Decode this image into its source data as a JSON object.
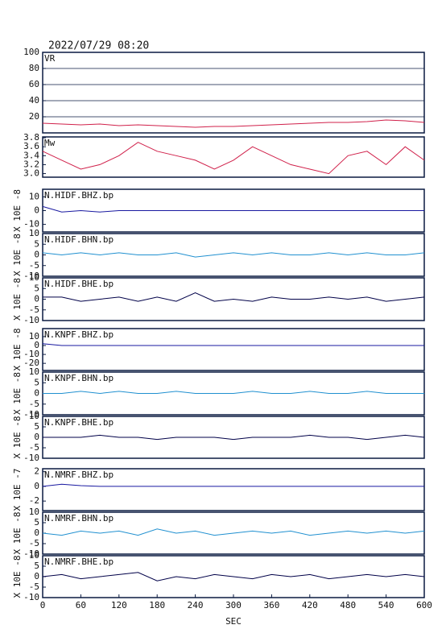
{
  "chart_data": [
    {
      "type": "line",
      "title": "2022/07/29 08:20",
      "label": "VR",
      "xlim": [
        0,
        600
      ],
      "ylim": [
        0,
        100
      ],
      "yticks": [
        20,
        40,
        60,
        80,
        100
      ],
      "grid": true,
      "color": "#d0204a",
      "x": [
        0,
        30,
        60,
        90,
        120,
        150,
        180,
        210,
        240,
        270,
        300,
        330,
        360,
        390,
        420,
        450,
        480,
        510,
        540,
        570,
        600
      ],
      "values": [
        12,
        11,
        10,
        11,
        9,
        10,
        9,
        8,
        7,
        8,
        8,
        9,
        10,
        11,
        12,
        13,
        13,
        14,
        16,
        15,
        13
      ]
    },
    {
      "type": "line",
      "label": "Mw",
      "xlim": [
        0,
        600
      ],
      "ylim": [
        2.92,
        3.82
      ],
      "yticks": [
        {
          "value": 3,
          "label": "3.0"
        },
        3.2,
        3.4,
        3.6,
        3.8
      ],
      "color": "#d0204a",
      "x": [
        0,
        30,
        60,
        90,
        120,
        150,
        180,
        210,
        240,
        270,
        300,
        330,
        360,
        390,
        420,
        450,
        480,
        510,
        540,
        570,
        600
      ],
      "values": [
        3.5,
        3.3,
        3.1,
        3.2,
        3.4,
        3.7,
        3.5,
        3.4,
        3.3,
        3.1,
        3.3,
        3.6,
        3.4,
        3.2,
        3.1,
        3.0,
        3.4,
        3.5,
        3.2,
        3.6,
        3.3
      ]
    },
    {
      "type": "line",
      "label": "N.HIDF.BHZ.bp",
      "ylabel": "X 10E -8",
      "xlim": [
        0,
        600
      ],
      "ylim": [
        -15.5,
        15.5
      ],
      "yticks": [
        -10,
        0,
        10
      ],
      "color": "#1818a0",
      "x": [
        0,
        30,
        60,
        90,
        120,
        150,
        180,
        210,
        240,
        270,
        300,
        330,
        360,
        390,
        420,
        450,
        480,
        510,
        540,
        570,
        600
      ],
      "values": [
        3,
        -1,
        0,
        -1,
        0,
        0,
        0,
        0,
        0,
        0,
        0,
        0,
        0,
        0,
        0,
        0,
        0,
        0,
        0,
        0,
        0
      ]
    },
    {
      "type": "line",
      "label": "N.HIDF.BHN.bp",
      "ylabel": "X 10E -8",
      "xlim": [
        0,
        600
      ],
      "ylim": [
        -10,
        10
      ],
      "yticks": [
        -10,
        -5,
        0,
        5,
        10
      ],
      "color": "#2090d0",
      "x": [
        0,
        30,
        60,
        90,
        120,
        150,
        180,
        210,
        240,
        270,
        300,
        330,
        360,
        390,
        420,
        450,
        480,
        510,
        540,
        570,
        600
      ],
      "values": [
        1,
        0,
        1,
        0,
        1,
        0,
        0,
        1,
        -1,
        0,
        1,
        0,
        1,
        0,
        0,
        1,
        0,
        1,
        0,
        0,
        1
      ]
    },
    {
      "type": "line",
      "label": "N.HIDF.BHE.bp",
      "ylabel": "X 10E -8",
      "xlim": [
        0,
        600
      ],
      "ylim": [
        -10,
        10
      ],
      "yticks": [
        -10,
        -5,
        0,
        5,
        10
      ],
      "color": "#000048",
      "x": [
        0,
        30,
        60,
        90,
        120,
        150,
        180,
        210,
        240,
        270,
        300,
        330,
        360,
        390,
        420,
        450,
        480,
        510,
        540,
        570,
        600
      ],
      "values": [
        1,
        1,
        -1,
        0,
        1,
        -1,
        1,
        -1,
        3,
        -1,
        0,
        -1,
        1,
        0,
        0,
        1,
        0,
        1,
        -1,
        0,
        1
      ]
    },
    {
      "type": "line",
      "label": "N.KNPF.BHZ.bp",
      "ylabel": "X 10E -8",
      "xlim": [
        0,
        600
      ],
      "ylim": [
        -28,
        19
      ],
      "yticks": [
        -20,
        -10,
        0,
        10
      ],
      "color": "#1818a0",
      "x": [
        0,
        30,
        60,
        90,
        120,
        150,
        180,
        210,
        240,
        270,
        300,
        330,
        360,
        390,
        420,
        450,
        480,
        510,
        540,
        570,
        600
      ],
      "values": [
        2,
        0,
        0,
        0,
        0,
        0,
        0,
        0,
        0,
        0,
        0,
        0,
        0,
        0,
        0,
        0,
        0,
        0,
        0,
        0,
        0
      ]
    },
    {
      "type": "line",
      "label": "N.KNPF.BHN.bp",
      "ylabel": "X 10E -8",
      "xlim": [
        0,
        600
      ],
      "ylim": [
        -10,
        10
      ],
      "yticks": [
        -10,
        -5,
        0,
        5,
        10
      ],
      "color": "#2090d0",
      "x": [
        0,
        30,
        60,
        90,
        120,
        150,
        180,
        210,
        240,
        270,
        300,
        330,
        360,
        390,
        420,
        450,
        480,
        510,
        540,
        570,
        600
      ],
      "values": [
        0,
        0,
        1,
        0,
        1,
        0,
        0,
        1,
        0,
        0,
        0,
        1,
        0,
        0,
        1,
        0,
        0,
        1,
        0,
        0,
        0
      ]
    },
    {
      "type": "line",
      "label": "N.KNPF.BHE.bp",
      "ylabel": "X 10E -8",
      "xlim": [
        0,
        600
      ],
      "ylim": [
        -10,
        10
      ],
      "yticks": [
        -10,
        -5,
        0,
        5,
        10
      ],
      "color": "#000048",
      "x": [
        0,
        30,
        60,
        90,
        120,
        150,
        180,
        210,
        240,
        270,
        300,
        330,
        360,
        390,
        420,
        450,
        480,
        510,
        540,
        570,
        600
      ],
      "values": [
        0,
        0,
        0,
        1,
        0,
        0,
        -1,
        0,
        0,
        0,
        -1,
        0,
        0,
        0,
        1,
        0,
        0,
        -1,
        0,
        1,
        0
      ]
    },
    {
      "type": "line",
      "label": "N.NMRF.BHZ.bp",
      "ylabel": "X 10E -7",
      "xlim": [
        0,
        600
      ],
      "ylim": [
        -3.3,
        2.4
      ],
      "yticks": [
        -2,
        0,
        2
      ],
      "color": "#1818a0",
      "x": [
        0,
        30,
        60,
        90,
        120,
        150,
        180,
        210,
        240,
        270,
        300,
        330,
        360,
        390,
        420,
        450,
        480,
        510,
        540,
        570,
        600
      ],
      "values": [
        0,
        0.3,
        0.1,
        0,
        0,
        0,
        0,
        0,
        0,
        0,
        0,
        0,
        0,
        0,
        0,
        0,
        0,
        0,
        0,
        0,
        0
      ]
    },
    {
      "type": "line",
      "label": "N.NMRF.BHN.bp",
      "ylabel": "X 10E -8",
      "xlim": [
        0,
        600
      ],
      "ylim": [
        -10,
        10
      ],
      "yticks": [
        -10,
        -5,
        0,
        5,
        10
      ],
      "color": "#2090d0",
      "x": [
        0,
        30,
        60,
        90,
        120,
        150,
        180,
        210,
        240,
        270,
        300,
        330,
        360,
        390,
        420,
        450,
        480,
        510,
        540,
        570,
        600
      ],
      "values": [
        0,
        -1,
        1,
        0,
        1,
        -1,
        2,
        0,
        1,
        -1,
        0,
        1,
        0,
        1,
        -1,
        0,
        1,
        0,
        1,
        0,
        1
      ]
    },
    {
      "type": "line",
      "label": "N.NMRF.BHE.bp",
      "ylabel": "X 10E -8",
      "xlim": [
        0,
        600
      ],
      "ylim": [
        -10,
        10
      ],
      "yticks": [
        -10,
        -5,
        0,
        5,
        10
      ],
      "color": "#000048",
      "x": [
        0,
        30,
        60,
        90,
        120,
        150,
        180,
        210,
        240,
        270,
        300,
        330,
        360,
        390,
        420,
        450,
        480,
        510,
        540,
        570,
        600
      ],
      "values": [
        0,
        1,
        -1,
        0,
        1,
        2,
        -2,
        0,
        -1,
        1,
        0,
        -1,
        1,
        0,
        1,
        -1,
        0,
        1,
        0,
        1,
        0
      ],
      "xlabel": "SEC",
      "xticks": [
        0,
        60,
        120,
        180,
        240,
        300,
        360,
        420,
        480,
        540,
        600
      ]
    }
  ]
}
